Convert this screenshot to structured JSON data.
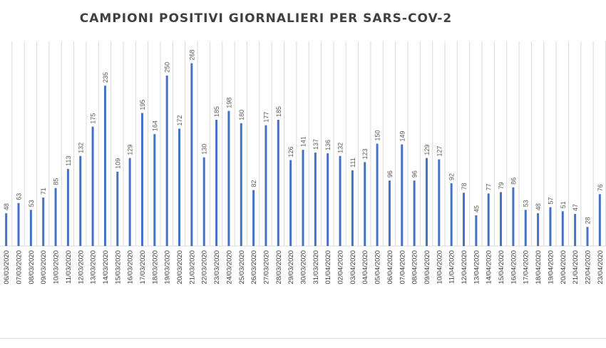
{
  "chart_data": {
    "type": "bar",
    "title": "CAMPIONI POSITIVI GIORNALIERI PER SARS-COV-2",
    "xlabel": "",
    "ylabel": "",
    "ylim": [
      0,
      300
    ],
    "grid": "vertical",
    "legend": "none",
    "bar_color": "#4472c4",
    "grid_color": "#d9d9d9",
    "categories": [
      "06/03/2020",
      "07/03/2020",
      "08/03/2020",
      "09/03/2020",
      "10/03/2020",
      "11/03/2020",
      "12/03/2020",
      "13/03/2020",
      "14/03/2020",
      "15/03/2020",
      "16/03/2020",
      "17/03/2020",
      "18/03/2020",
      "19/03/2020",
      "20/03/2020",
      "21/03/2020",
      "22/03/2020",
      "23/03/2020",
      "24/03/2020",
      "25/03/2020",
      "26/03/2020",
      "27/03/2020",
      "28/03/2020",
      "29/03/2020",
      "30/03/2020",
      "31/03/2020",
      "01/04/2020",
      "02/04/2020",
      "03/04/2020",
      "04/04/2020",
      "05/04/2020",
      "06/04/2020",
      "07/04/2020",
      "08/04/2020",
      "09/04/2020",
      "10/04/2020",
      "11/04/2020",
      "12/04/2020",
      "13/04/2020",
      "14/04/2020",
      "15/04/2020",
      "16/04/2020",
      "17/04/2020",
      "18/04/2020",
      "19/04/2020",
      "20/04/2020",
      "21/04/2020",
      "22/04/2020",
      "23/04/2020"
    ],
    "values": [
      48,
      63,
      53,
      71,
      85,
      113,
      132,
      175,
      235,
      109,
      129,
      195,
      164,
      250,
      172,
      268,
      130,
      185,
      198,
      180,
      82,
      177,
      185,
      126,
      141,
      137,
      136,
      132,
      111,
      123,
      150,
      96,
      149,
      96,
      129,
      127,
      92,
      78,
      45,
      77,
      79,
      86,
      53,
      48,
      57,
      51,
      47,
      28,
      76
    ]
  }
}
